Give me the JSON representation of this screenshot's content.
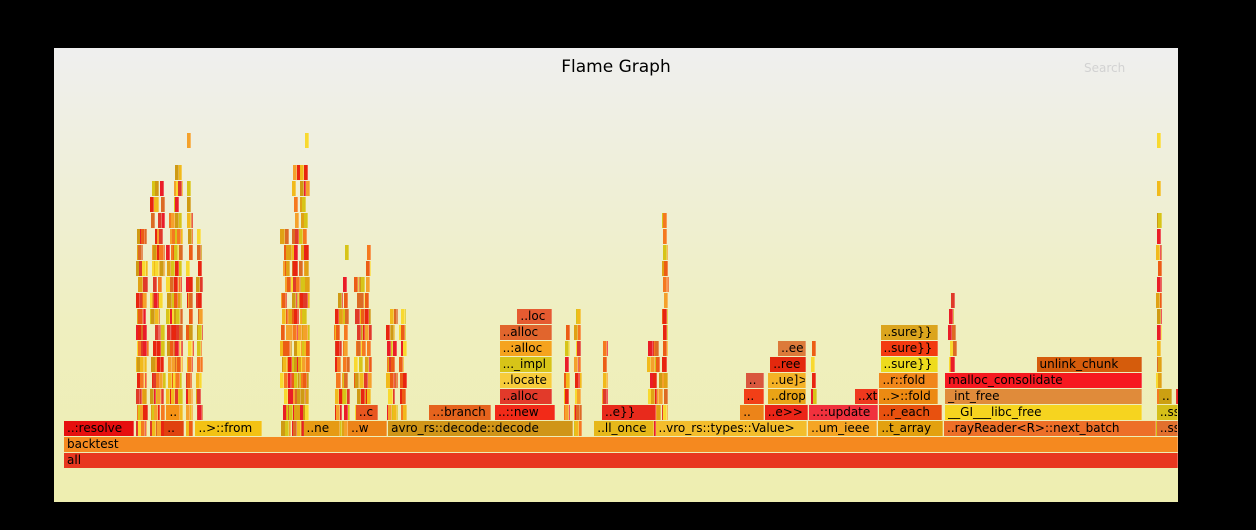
{
  "title": "Flame Graph",
  "search_label": "Search",
  "palette": [
    "#e8250f",
    "#f5791f",
    "#f1ba1c",
    "#dc6b23",
    "#e03a29",
    "#f8d930",
    "#e0a214",
    "#ec5d14",
    "#d7c418",
    "#f4a12b",
    "#ea1d27",
    "#cf9a13"
  ],
  "labeled_frames": [
    {
      "label": "all",
      "depth": 0,
      "start": 0.0,
      "end": 1.0,
      "color": "#e8371f"
    },
    {
      "label": "backtest",
      "depth": 1,
      "start": 0.0,
      "end": 1.0,
      "color": "#f5891f"
    },
    {
      "label": "..:resolve",
      "depth": 2,
      "start": 0.0,
      "end": 0.063,
      "color": "#e60f0f"
    },
    {
      "label": "..",
      "depth": 2,
      "start": 0.09,
      "end": 0.108,
      "color": "#e0420f"
    },
    {
      "label": "..>::from",
      "depth": 2,
      "start": 0.118,
      "end": 0.178,
      "color": "#f3c214"
    },
    {
      "label": "..ne",
      "depth": 2,
      "start": 0.215,
      "end": 0.248,
      "color": "#e69a14"
    },
    {
      "label": "..w",
      "depth": 2,
      "start": 0.255,
      "end": 0.29,
      "color": "#ec8418"
    },
    {
      "label": "avro_rs::decode::decode",
      "depth": 2,
      "start": 0.291,
      "end": 0.457,
      "color": "#d09518"
    },
    {
      "label": "..ll_once",
      "depth": 2,
      "start": 0.476,
      "end": 0.53,
      "color": "#e6b81a"
    },
    {
      "label": "..vro_rs::types::Value>",
      "depth": 2,
      "start": 0.531,
      "end": 0.667,
      "color": "#f3bd2c"
    },
    {
      "label": "..um_ieee",
      "depth": 2,
      "start": 0.668,
      "end": 0.73,
      "color": "#f5a524"
    },
    {
      "label": "..t_array",
      "depth": 2,
      "start": 0.731,
      "end": 0.789,
      "color": "#e3a10f"
    },
    {
      "label": "..rayReader<R>::next_batch",
      "depth": 2,
      "start": 0.79,
      "end": 0.98,
      "color": "#ed6f28"
    },
    {
      "label": "..ss",
      "depth": 2,
      "start": 0.981,
      "end": 1.0,
      "color": "#e2702e"
    },
    {
      "label": "..",
      "depth": 3,
      "start": 0.092,
      "end": 0.104,
      "color": "#f59216"
    },
    {
      "label": "..c",
      "depth": 3,
      "start": 0.262,
      "end": 0.282,
      "color": "#e8561f"
    },
    {
      "label": "..:branch",
      "depth": 3,
      "start": 0.328,
      "end": 0.383,
      "color": "#e5631d"
    },
    {
      "label": "..::new",
      "depth": 3,
      "start": 0.387,
      "end": 0.441,
      "color": "#f22a18"
    },
    {
      "label": "..e}}",
      "depth": 3,
      "start": 0.483,
      "end": 0.531,
      "color": "#e82a1c"
    },
    {
      "label": "..",
      "depth": 3,
      "start": 0.607,
      "end": 0.628,
      "color": "#ec8419"
    },
    {
      "label": "..e>>",
      "depth": 3,
      "start": 0.629,
      "end": 0.668,
      "color": "#eb2518"
    },
    {
      "label": "..::update",
      "depth": 3,
      "start": 0.669,
      "end": 0.731,
      "color": "#f0313d"
    },
    {
      "label": "..r_each",
      "depth": 3,
      "start": 0.732,
      "end": 0.788,
      "color": "#e8510f"
    },
    {
      "label": "__GI___libc_free",
      "depth": 3,
      "start": 0.791,
      "end": 0.968,
      "color": "#f6d41f"
    },
    {
      "label": "..ss",
      "depth": 3,
      "start": 0.981,
      "end": 1.0,
      "color": "#d5bf19"
    },
    {
      "label": "..alloc",
      "depth": 4,
      "start": 0.391,
      "end": 0.438,
      "color": "#e23a2a"
    },
    {
      "label": "..",
      "depth": 4,
      "start": 0.61,
      "end": 0.628,
      "color": "#f23f17"
    },
    {
      "label": "..drop",
      "depth": 4,
      "start": 0.632,
      "end": 0.666,
      "color": "#e9a316"
    },
    {
      "label": "..xt",
      "depth": 4,
      "start": 0.71,
      "end": 0.731,
      "color": "#ee381d"
    },
    {
      "label": "..>::fold",
      "depth": 4,
      "start": 0.732,
      "end": 0.785,
      "color": "#ec8a12"
    },
    {
      "label": "_int_free",
      "depth": 4,
      "start": 0.791,
      "end": 0.968,
      "color": "#e08b3a"
    },
    {
      "label": "..",
      "depth": 4,
      "start": 0.983,
      "end": 0.995,
      "color": "#cca012"
    },
    {
      "label": "..locate",
      "depth": 5,
      "start": 0.391,
      "end": 0.438,
      "color": "#f7cc3b"
    },
    {
      "label": "..",
      "depth": 5,
      "start": 0.612,
      "end": 0.628,
      "color": "#d9573e"
    },
    {
      "label": "..ue]>",
      "depth": 5,
      "start": 0.632,
      "end": 0.666,
      "color": "#f4b226"
    },
    {
      "label": "..r::fold",
      "depth": 5,
      "start": 0.732,
      "end": 0.785,
      "color": "#f1871a"
    },
    {
      "label": "malloc_consolidate",
      "depth": 5,
      "start": 0.791,
      "end": 0.968,
      "color": "#f61920"
    },
    {
      "label": "..._impl",
      "depth": 6,
      "start": 0.391,
      "end": 0.438,
      "color": "#d7c418"
    },
    {
      "label": "..ree",
      "depth": 6,
      "start": 0.634,
      "end": 0.666,
      "color": "#e3280d"
    },
    {
      "label": "..sure}}",
      "depth": 6,
      "start": 0.733,
      "end": 0.785,
      "color": "#eedb1d"
    },
    {
      "label": "unlink_chunk",
      "depth": 6,
      "start": 0.873,
      "end": 0.968,
      "color": "#d55c0c"
    },
    {
      "label": "..:alloc",
      "depth": 7,
      "start": 0.391,
      "end": 0.438,
      "color": "#f5a31e"
    },
    {
      "label": "..ee",
      "depth": 7,
      "start": 0.641,
      "end": 0.666,
      "color": "#dc7a3a"
    },
    {
      "label": "..sure}}",
      "depth": 7,
      "start": 0.733,
      "end": 0.785,
      "color": "#f33a10"
    },
    {
      "label": "..alloc",
      "depth": 8,
      "start": 0.391,
      "end": 0.438,
      "color": "#e1652d"
    },
    {
      "label": "..sure}}",
      "depth": 8,
      "start": 0.733,
      "end": 0.785,
      "color": "#dba51e"
    },
    {
      "label": "..loc",
      "depth": 9,
      "start": 0.407,
      "end": 0.438,
      "color": "#e55b31"
    }
  ]
}
